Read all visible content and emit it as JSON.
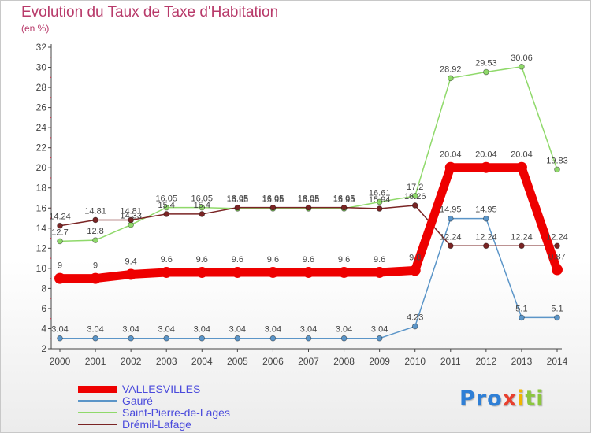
{
  "title": "Evolution du Taux de Taxe d'Habitation",
  "unit": "(en %)",
  "logo": {
    "text": "Proxiti",
    "letters": [
      {
        "ch": "P",
        "color": "#2f7fd6"
      },
      {
        "ch": "r",
        "color": "#2f7fd6"
      },
      {
        "ch": "o",
        "color": "#2f7fd6"
      },
      {
        "ch": "x",
        "color": "#e8402e"
      },
      {
        "ch": "i",
        "color": "#f2b400"
      },
      {
        "ch": "t",
        "color": "#8cc63e"
      },
      {
        "ch": "i",
        "color": "#8cc63e"
      }
    ]
  },
  "chart_data": {
    "type": "line",
    "title": "Evolution du Taux de Taxe d'Habitation",
    "ylabel": "(en %)",
    "xlabel": "",
    "ylim": [
      2,
      32
    ],
    "yticks": [
      2,
      4,
      6,
      8,
      10,
      12,
      14,
      16,
      18,
      20,
      22,
      24,
      26,
      28,
      30,
      32
    ],
    "grid": false,
    "legend_position": "bottom-left",
    "x": [
      "2000",
      "2001",
      "2002",
      "2003",
      "2004",
      "2005",
      "2006",
      "2007",
      "2008",
      "2009",
      "2010",
      "2011",
      "2012",
      "2013",
      "2014"
    ],
    "series": [
      {
        "name": "VALLESVILLES",
        "color": "#ee0000",
        "values": [
          9,
          9,
          9.4,
          9.6,
          9.6,
          9.6,
          9.6,
          9.6,
          9.6,
          9.6,
          9.8,
          20.04,
          20.04,
          20.04,
          9.87
        ],
        "labels": [
          "9",
          "9",
          "9.4",
          "9.6",
          "9.6",
          "9.6",
          "9.6",
          "9.6",
          "9.6",
          "9.6",
          "9.8",
          "20.04",
          "20.04",
          "20.04",
          "9.87"
        ]
      },
      {
        "name": "Gauré",
        "color": "#5b95c8",
        "values": [
          3.04,
          3.04,
          3.04,
          3.04,
          3.04,
          3.04,
          3.04,
          3.04,
          3.04,
          3.04,
          4.23,
          14.95,
          14.95,
          5.1,
          5.1
        ],
        "labels": [
          "3.04",
          "3.04",
          "3.04",
          "3.04",
          "3.04",
          "3.04",
          "3.04",
          "3.04",
          "3.04",
          "3.04",
          "4.23",
          "14.95",
          "14.95",
          "5.1",
          "5.1"
        ]
      },
      {
        "name": "Saint-Pierre-de-Lages",
        "color": "#8fd96a",
        "values": [
          12.7,
          12.8,
          14.33,
          16.05,
          16.05,
          15.95,
          15.95,
          15.95,
          15.95,
          16.61,
          17.2,
          28.92,
          29.53,
          30.06,
          19.83
        ],
        "labels": [
          "12.7",
          "12.8",
          "14.33",
          "16.05",
          "16.05",
          "15.95",
          "15.95",
          "15.95",
          "15.95",
          "16.61",
          "17.2",
          "28.92",
          "29.53",
          "30.06",
          "19.83"
        ]
      },
      {
        "name": "Drémil-Lafage",
        "color": "#7a2424",
        "values": [
          14.24,
          14.81,
          14.81,
          15.4,
          15.4,
          16.05,
          16.05,
          16.05,
          16.05,
          15.94,
          16.26,
          12.24,
          12.24,
          12.24,
          12.24
        ],
        "labels": [
          "14.24",
          "14.81",
          "14.81",
          "15.4",
          "15.4",
          "16.05",
          "16.05",
          "16.05",
          "16.05",
          "15.94",
          "16.26",
          "12.24",
          "12.24",
          "12.24",
          "12.24"
        ]
      }
    ]
  }
}
